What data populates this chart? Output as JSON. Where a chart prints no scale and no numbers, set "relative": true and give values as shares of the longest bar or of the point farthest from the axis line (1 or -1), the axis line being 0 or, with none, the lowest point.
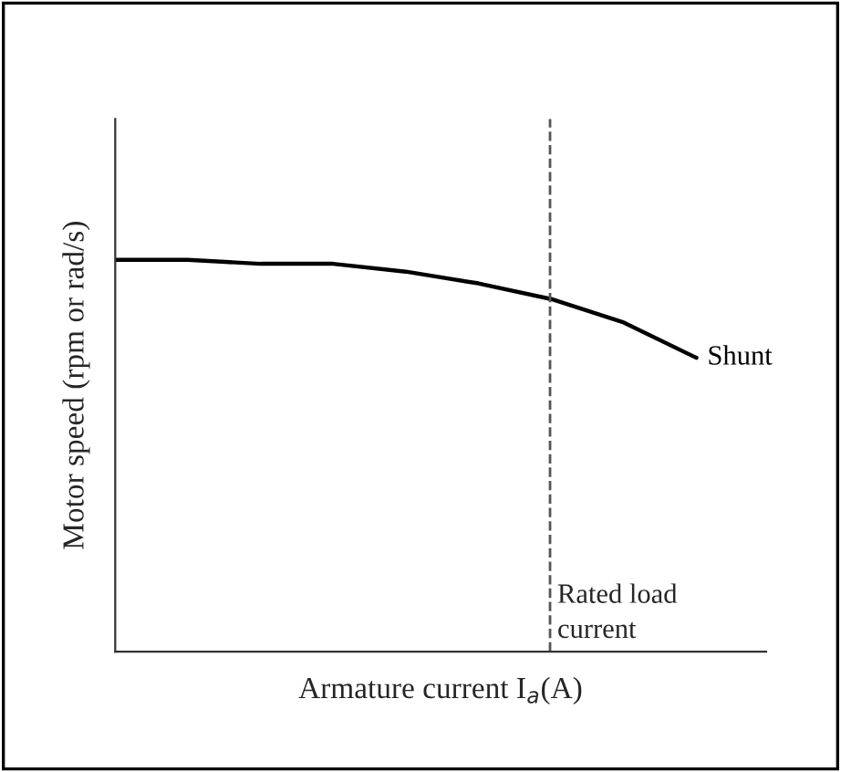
{
  "chart_data": {
    "type": "line",
    "relative": true,
    "xlabel": "Armature current I$_{a}$(A)",
    "ylabel": "Motor speed (rpm or rad/s)",
    "categories": [
      null,
      null,
      null,
      null,
      null,
      null,
      null,
      null,
      null
    ],
    "series": [
      {
        "name": "Shunt",
        "color": "#000000",
        "values": [
          1,
          1.0,
          0.99,
          0.99,
          0.97,
          0.94,
          0.9,
          0.84,
          0.75
        ]
      }
    ],
    "annotations": [
      "Rated load\ncurrent"
    ]
  }
}
